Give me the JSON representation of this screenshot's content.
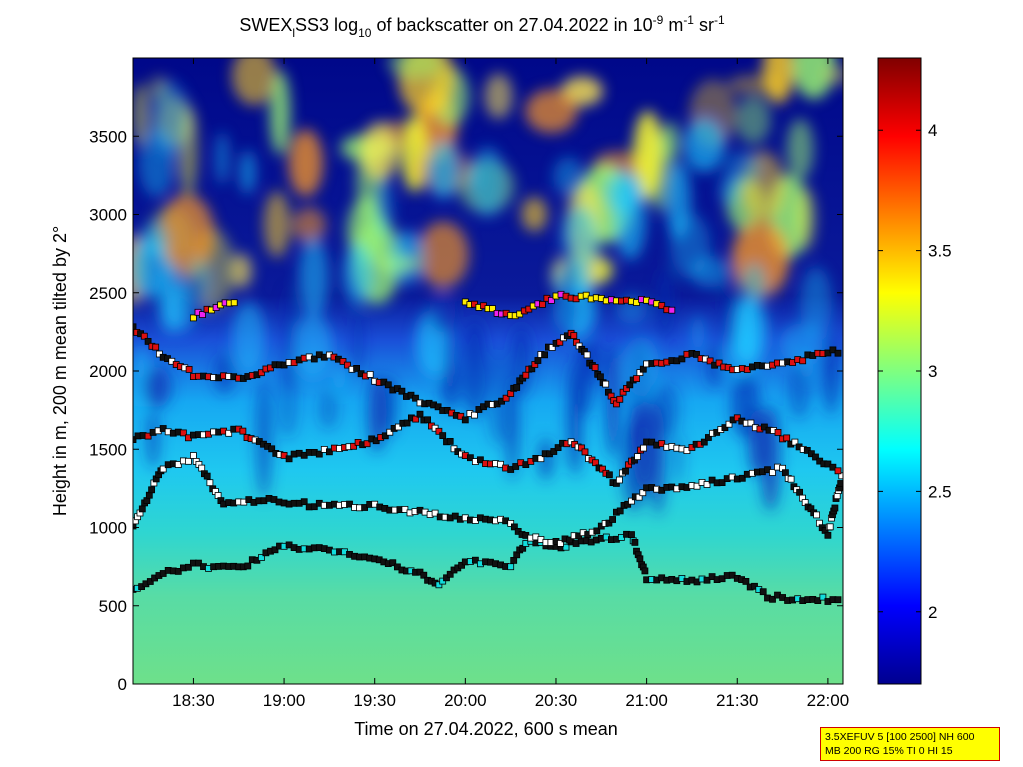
{
  "chart_data": {
    "type": "heatmap",
    "title": {
      "prefix": "SWEX",
      "sub": "l",
      "mid1": "SS3 log",
      "sub2": "10",
      "mid2": " of backscatter on 27.04.2022 in 10",
      "sup1": "-9",
      "mid3": " m",
      "sup2": "-1",
      "mid4": " sr",
      "sup3": "-1"
    },
    "xlabel": "Time on 27.04.2022, 600 s mean",
    "ylabel": "Height in m, 200 m mean tilted by 2°",
    "x_ticks": [
      "18:30",
      "19:00",
      "19:30",
      "20:00",
      "20:30",
      "21:00",
      "21:30",
      "22:00"
    ],
    "x_range": [
      "18:10",
      "22:05"
    ],
    "y_ticks": [
      0,
      500,
      1000,
      1500,
      2000,
      2500,
      3000,
      3500
    ],
    "ylim": [
      0,
      4000
    ],
    "colorbar": {
      "ticks": [
        "2",
        "2.5",
        "3",
        "3.5",
        "4"
      ],
      "range": [
        1.7,
        4.3
      ],
      "colormap": "jet"
    },
    "layers": [
      {
        "name": "layer1",
        "points": [
          [
            "18:10",
            610
          ],
          [
            "18:20",
            700
          ],
          [
            "18:30",
            760
          ],
          [
            "18:45",
            740
          ],
          [
            "19:00",
            880
          ],
          [
            "19:15",
            860
          ],
          [
            "19:30",
            800
          ],
          [
            "19:45",
            700
          ],
          [
            "19:50",
            630
          ],
          [
            "20:00",
            780
          ],
          [
            "20:15",
            760
          ],
          [
            "20:20",
            900
          ],
          [
            "20:30",
            880
          ],
          [
            "20:45",
            920
          ],
          [
            "20:55",
            950
          ],
          [
            "21:00",
            680
          ],
          [
            "21:15",
            660
          ],
          [
            "21:30",
            690
          ],
          [
            "21:40",
            560
          ],
          [
            "21:50",
            540
          ],
          [
            "22:05",
            540
          ]
        ]
      },
      {
        "name": "layer2",
        "points": [
          [
            "18:10",
            1020
          ],
          [
            "18:20",
            1380
          ],
          [
            "18:30",
            1450
          ],
          [
            "18:40",
            1150
          ],
          [
            "18:55",
            1180
          ],
          [
            "19:10",
            1140
          ],
          [
            "19:30",
            1140
          ],
          [
            "19:45",
            1100
          ],
          [
            "20:00",
            1050
          ],
          [
            "20:15",
            1040
          ],
          [
            "20:20",
            940
          ],
          [
            "20:30",
            900
          ],
          [
            "20:45",
            1000
          ],
          [
            "21:00",
            1250
          ],
          [
            "21:15",
            1260
          ],
          [
            "21:30",
            1320
          ],
          [
            "21:45",
            1380
          ],
          [
            "22:00",
            960
          ],
          [
            "22:05",
            1350
          ]
        ]
      },
      {
        "name": "layer3",
        "points": [
          [
            "18:10",
            1560
          ],
          [
            "18:20",
            1620
          ],
          [
            "18:30",
            1580
          ],
          [
            "18:45",
            1620
          ],
          [
            "19:00",
            1450
          ],
          [
            "19:20",
            1500
          ],
          [
            "19:35",
            1600
          ],
          [
            "19:45",
            1720
          ],
          [
            "20:00",
            1450
          ],
          [
            "20:15",
            1380
          ],
          [
            "20:25",
            1450
          ],
          [
            "20:35",
            1560
          ],
          [
            "20:50",
            1280
          ],
          [
            "21:00",
            1550
          ],
          [
            "21:15",
            1500
          ],
          [
            "21:30",
            1700
          ],
          [
            "21:45",
            1580
          ],
          [
            "22:00",
            1400
          ],
          [
            "22:05",
            1360
          ]
        ]
      },
      {
        "name": "layer4",
        "points": [
          [
            "18:10",
            2280
          ],
          [
            "18:20",
            2100
          ],
          [
            "18:30",
            1980
          ],
          [
            "18:45",
            1950
          ],
          [
            "19:00",
            2050
          ],
          [
            "19:15",
            2100
          ],
          [
            "19:30",
            1950
          ],
          [
            "19:45",
            1800
          ],
          [
            "20:00",
            1700
          ],
          [
            "20:15",
            1850
          ],
          [
            "20:25",
            2100
          ],
          [
            "20:35",
            2250
          ],
          [
            "20:50",
            1800
          ],
          [
            "21:00",
            2030
          ],
          [
            "21:15",
            2100
          ],
          [
            "21:30",
            2000
          ],
          [
            "21:45",
            2050
          ],
          [
            "22:00",
            2120
          ],
          [
            "22:05",
            2120
          ]
        ]
      },
      {
        "name": "layer5",
        "points": [
          [
            "18:30",
            2350
          ],
          [
            "18:45",
            2450
          ],
          [
            "20:00",
            2450
          ],
          [
            "20:15",
            2350
          ],
          [
            "20:30",
            2480
          ],
          [
            "21:00",
            2450
          ],
          [
            "21:10",
            2380
          ]
        ]
      }
    ]
  },
  "info_box": {
    "line1": "3.5XEFUV 5 [100 2500] NH 600",
    "line2": "MB 200 RG 15% TI 0 HI 15"
  }
}
